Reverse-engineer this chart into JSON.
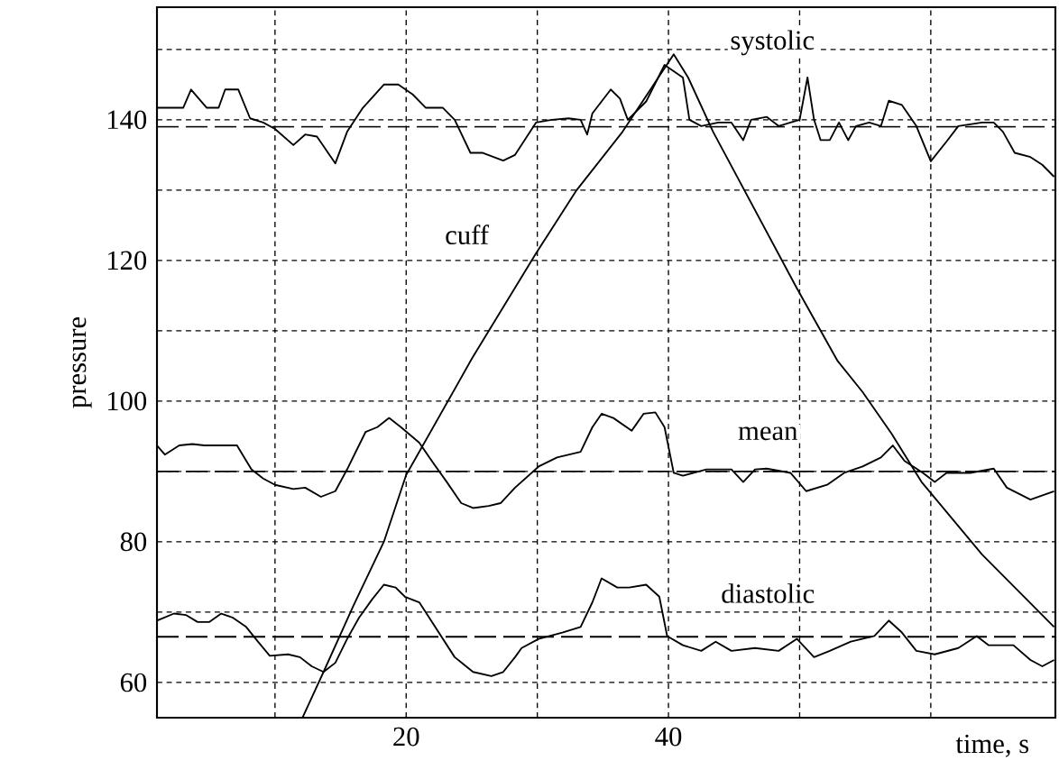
{
  "chart_data": {
    "type": "line",
    "xlabel": "time, s",
    "ylabel": "pressure",
    "xlim": [
      1,
      69.5
    ],
    "ylim": [
      55,
      156
    ],
    "xticks": [
      {
        "value": 10,
        "label": null
      },
      20,
      {
        "value": 30,
        "label": null
      },
      40,
      {
        "value": 50,
        "label": null
      },
      {
        "value": 60,
        "label": null
      }
    ],
    "yticks": [
      60,
      {
        "value": 70,
        "label": null
      },
      80,
      {
        "value": 90,
        "label": null
      },
      100,
      {
        "value": 110,
        "label": null
      },
      120,
      {
        "value": 130,
        "label": null
      },
      140,
      {
        "value": 150,
        "label": null
      }
    ],
    "grid": true,
    "marker": "none",
    "line_style": "solid",
    "series": [
      {
        "name": "systolic",
        "color": "#000000",
        "x": [
          1.0,
          3.0,
          3.6,
          4.1,
          4.8,
          5.7,
          6.2,
          7.2,
          8.1,
          9.1,
          10.0,
          11.4,
          12.3,
          13.2,
          14.6,
          15.5,
          16.7,
          18.3,
          19.4,
          20.5,
          21.5,
          22.8,
          23.7,
          24.9,
          25.8,
          27.4,
          28.3,
          29.9,
          31.1,
          32.4,
          33.3,
          33.8,
          34.2,
          35.6,
          36.3,
          36.9,
          38.3,
          39.7,
          41.1,
          41.6,
          42.5,
          43.8,
          44.8,
          45.7,
          46.3,
          47.5,
          48.4,
          49.3,
          50.0,
          50.6,
          51.1,
          51.6,
          52.3,
          53.0,
          53.7,
          54.3,
          55.3,
          56.2,
          56.8,
          57.8,
          58.9,
          60.0,
          61.2,
          62.1,
          63.9,
          64.8,
          65.5,
          66.4,
          67.6,
          68.5,
          69.4
        ],
        "values": [
          141.7,
          141.7,
          144.3,
          143.2,
          141.7,
          141.7,
          144.3,
          144.3,
          140.2,
          139.6,
          138.7,
          136.4,
          137.9,
          137.6,
          133.8,
          138.3,
          141.7,
          145.0,
          145.0,
          143.6,
          141.7,
          141.7,
          140.0,
          135.3,
          135.3,
          134.2,
          135.0,
          139.6,
          140.0,
          140.2,
          140.0,
          137.9,
          140.9,
          144.3,
          143.0,
          140.0,
          142.6,
          147.8,
          146.0,
          140.0,
          139.1,
          139.6,
          139.6,
          137.1,
          140.0,
          140.4,
          139.1,
          139.6,
          140.0,
          146.0,
          140.0,
          137.1,
          137.1,
          139.6,
          137.1,
          139.1,
          139.6,
          139.1,
          142.7,
          142.1,
          139.1,
          134.1,
          136.9,
          139.1,
          139.6,
          139.6,
          138.3,
          135.3,
          134.7,
          133.6,
          131.9
        ]
      },
      {
        "name": "cuff",
        "color": "#000000",
        "x": [
          12.1,
          13.7,
          16.0,
          18.3,
          20.0,
          25.0,
          29.9,
          33.0,
          36.5,
          40.4,
          41.5,
          43.4,
          49.8,
          52.9,
          54.8,
          57.0,
          59.3,
          63.9,
          69.4
        ],
        "values": [
          55,
          61.5,
          71,
          80,
          89.5,
          106,
          121,
          130,
          138.3,
          149.3,
          146,
          138.3,
          116,
          105.7,
          101.3,
          95.4,
          88.5,
          78.2,
          67.9
        ]
      },
      {
        "name": "mean",
        "color": "#000000",
        "x": [
          1.0,
          1.6,
          2.7,
          3.7,
          4.6,
          7.1,
          8.2,
          9.1,
          10.0,
          11.4,
          12.3,
          13.5,
          14.6,
          15.5,
          16.9,
          17.8,
          18.7,
          19.6,
          21.0,
          22.1,
          23.1,
          24.2,
          25.1,
          26.3,
          27.2,
          28.3,
          30.1,
          31.5,
          33.3,
          34.2,
          34.9,
          35.8,
          37.2,
          38.1,
          39.0,
          39.7,
          40.4,
          41.1,
          42.9,
          44.8,
          45.7,
          46.6,
          47.5,
          49.3,
          50.5,
          52.1,
          53.4,
          54.8,
          56.2,
          57.1,
          58.0,
          59.4,
          60.3,
          61.2,
          63.0,
          64.8,
          65.8,
          67.6,
          69.4
        ],
        "values": [
          93.7,
          92.4,
          93.7,
          93.9,
          93.7,
          93.7,
          90.3,
          89.0,
          88.1,
          87.5,
          87.7,
          86.4,
          87.2,
          90.3,
          95.6,
          96.3,
          97.6,
          96.3,
          94.1,
          91.1,
          88.5,
          85.5,
          84.8,
          85.1,
          85.5,
          87.7,
          90.7,
          92.0,
          92.8,
          96.3,
          98.2,
          97.6,
          95.8,
          98.2,
          98.4,
          96.3,
          89.8,
          89.4,
          90.3,
          90.3,
          88.5,
          90.3,
          90.4,
          89.8,
          87.2,
          88.1,
          89.8,
          90.7,
          92.0,
          93.7,
          91.5,
          89.8,
          88.5,
          89.8,
          89.8,
          90.4,
          87.7,
          86.0,
          87.2
        ]
      },
      {
        "name": "diastolic",
        "color": "#000000",
        "x": [
          1.0,
          2.3,
          3.2,
          4.1,
          5.0,
          5.9,
          6.8,
          7.8,
          8.7,
          9.6,
          11.0,
          11.9,
          12.8,
          13.7,
          14.6,
          15.5,
          16.4,
          17.4,
          18.3,
          19.2,
          19.9,
          21.0,
          21.9,
          22.8,
          23.7,
          25.1,
          26.5,
          27.4,
          28.3,
          28.8,
          30.1,
          31.9,
          33.3,
          34.2,
          34.9,
          36.1,
          37.0,
          38.3,
          39.3,
          39.9,
          41.1,
          42.5,
          43.6,
          44.8,
          46.6,
          48.4,
          49.8,
          51.1,
          52.3,
          53.9,
          55.7,
          56.8,
          57.8,
          58.9,
          60.3,
          62.1,
          63.5,
          64.4,
          66.3,
          67.6,
          68.5,
          69.4
        ],
        "values": [
          68.8,
          69.8,
          69.6,
          68.6,
          68.6,
          69.8,
          69.2,
          67.9,
          65.8,
          63.8,
          64.0,
          63.6,
          62.3,
          61.5,
          62.8,
          66.2,
          69.2,
          71.8,
          73.9,
          73.5,
          72.2,
          71.4,
          68.8,
          66.2,
          63.6,
          61.5,
          60.9,
          61.5,
          63.6,
          64.9,
          66.2,
          67.1,
          67.9,
          71.4,
          74.8,
          73.5,
          73.5,
          73.9,
          72.2,
          66.6,
          65.3,
          64.5,
          65.8,
          64.5,
          64.9,
          64.5,
          66.2,
          63.6,
          64.5,
          65.8,
          66.6,
          68.8,
          67.1,
          64.5,
          64.0,
          64.9,
          66.6,
          65.3,
          65.3,
          63.2,
          62.3,
          63.2
        ]
      }
    ],
    "ref_lines": [
      {
        "axis": "y",
        "value": 139,
        "color": "#000000",
        "line_style": "dashed"
      },
      {
        "axis": "y",
        "value": 90,
        "color": "#000000",
        "line_style": "dashed"
      },
      {
        "axis": "y",
        "value": 66.5,
        "color": "#000000",
        "line_style": "dashed"
      }
    ]
  }
}
